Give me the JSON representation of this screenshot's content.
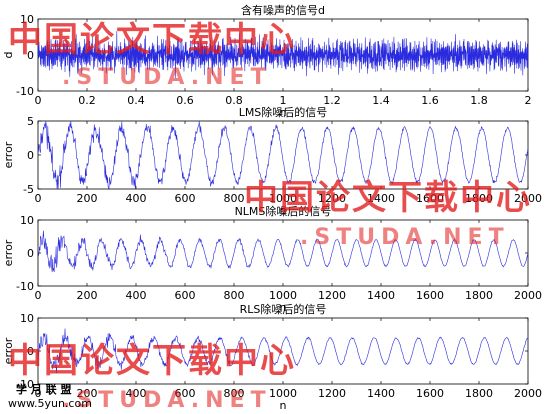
{
  "chart_data": [
    {
      "type": "line",
      "title": "含有噪声的信号d",
      "xlabel": "n",
      "ylabel": "d",
      "xlim": [
        0,
        2
      ],
      "ylim": [
        -10,
        10
      ],
      "xticks": [
        0,
        0.2,
        0.4,
        0.6,
        0.8,
        1,
        1.2,
        1.4,
        1.6,
        1.8,
        2
      ],
      "xtick_labels": [
        "0",
        "0.2",
        "0.4",
        "0.6",
        "0.8",
        "1",
        "1.2",
        "1.4",
        "1.6",
        "1.8",
        "2"
      ],
      "yticks": [
        -10,
        0,
        10
      ],
      "ytick_labels": [
        "-10",
        "0",
        "10"
      ],
      "grid": false,
      "series": [
        {
          "signal": "dense noisy sinusoid",
          "amplitude_range": [
            -8,
            8
          ],
          "color": "#2a2adf"
        }
      ]
    },
    {
      "type": "line",
      "title": "LMS除噪后的信号",
      "xlabel": "n",
      "ylabel": "error",
      "xlim": [
        0,
        2000
      ],
      "ylim": [
        -5,
        5
      ],
      "xticks": [
        0,
        200,
        400,
        600,
        800,
        1000,
        1200,
        1400,
        1600,
        1800,
        2000
      ],
      "xtick_labels": [
        "0",
        "200",
        "400",
        "600",
        "800",
        "1000",
        "1200",
        "1400",
        "1600",
        "1800",
        "2000"
      ],
      "yticks": [
        -5,
        0,
        5
      ],
      "ytick_labels": [
        "-5",
        "0",
        "5"
      ],
      "grid": false,
      "series": [
        {
          "signal": "sinusoid with decaying noise",
          "amplitude": 4,
          "period_samples": 105,
          "color": "#2a2adf"
        }
      ]
    },
    {
      "type": "line",
      "title": "NLMS除噪后的信号",
      "xlabel": "n",
      "ylabel": "error",
      "xlim": [
        0,
        2000
      ],
      "ylim": [
        -10,
        10
      ],
      "xticks": [
        0,
        200,
        400,
        600,
        800,
        1000,
        1200,
        1400,
        1600,
        1800,
        2000
      ],
      "xtick_labels": [
        "0",
        "200",
        "400",
        "600",
        "800",
        "1000",
        "1200",
        "1400",
        "1600",
        "1800",
        "2000"
      ],
      "yticks": [
        -10,
        0,
        10
      ],
      "ytick_labels": [
        "-10",
        "0",
        "10"
      ],
      "grid": false,
      "series": [
        {
          "signal": "sinusoid with decaying noise",
          "amplitude": 4,
          "period_samples": 80,
          "color": "#2a2adf"
        }
      ]
    },
    {
      "type": "line",
      "title": "RLS除噪后的信号",
      "xlabel": "n",
      "ylabel": "error",
      "xlim": [
        0,
        2000
      ],
      "ylim": [
        -10,
        10
      ],
      "xticks": [
        0,
        200,
        400,
        600,
        800,
        1000,
        1200,
        1400,
        1600,
        1800,
        2000
      ],
      "xtick_labels": [
        "0",
        "200",
        "400",
        "600",
        "800",
        "1000",
        "1200",
        "1400",
        "1600",
        "1800",
        "2000"
      ],
      "yticks": [
        -10,
        0,
        10
      ],
      "ytick_labels": [
        "-10",
        "0",
        "10"
      ],
      "grid": false,
      "series": [
        {
          "signal": "sinusoid with decaying noise",
          "amplitude": 4,
          "period_samples": 90,
          "color": "#2a2adf"
        }
      ]
    }
  ],
  "watermarks": {
    "cn_text": "中国论文下载中心",
    "url_text": ".STUDA.NET",
    "corner_logo": "学 月 联 盟",
    "corner_url": "www.5yun.com"
  }
}
